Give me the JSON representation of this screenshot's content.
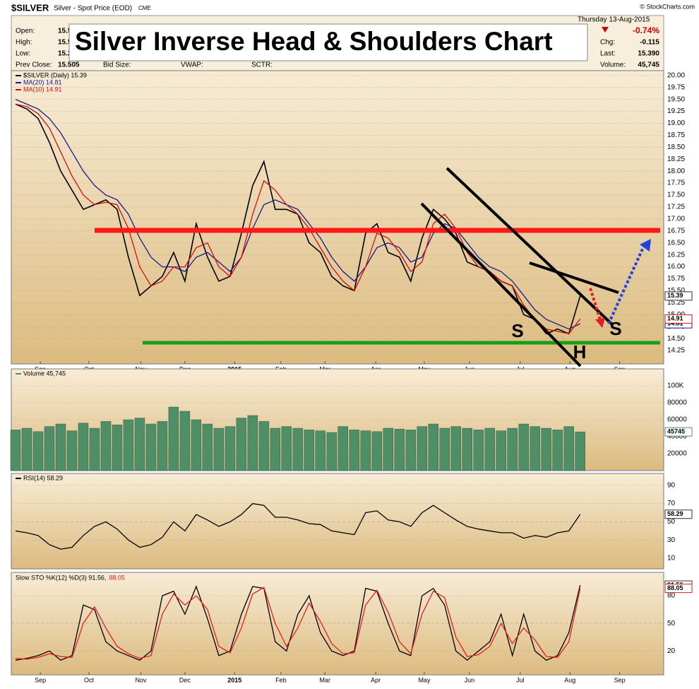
{
  "header": {
    "symbol": "$SILVER",
    "description": "Silver - Spot Price (EOD)",
    "exchange": "CME",
    "date": "Thursday 13-Aug-2015",
    "change_pct": "-0.74%",
    "fields": [
      {
        "label": "Open:",
        "value": "15.5"
      },
      {
        "label": "High:",
        "value": "15.5"
      },
      {
        "label": "Low:",
        "value": "15.2"
      },
      {
        "label": "Prev Close:",
        "value": "15.505"
      }
    ],
    "right_fields": [
      {
        "label": "Chg:",
        "value": "-0.115"
      },
      {
        "label": "Last:",
        "value": "15.390"
      },
      {
        "label": "Volume:",
        "value": "45,745"
      }
    ],
    "extra_fields": [
      "Bid Size:",
      "VWAP:",
      "SCTR:"
    ],
    "copyright": "© StockCharts.com"
  },
  "chart_data": [
    {
      "type": "line",
      "title": "Silver Inverse Head & Shoulders Chart",
      "annotations": [
        "S",
        "H",
        "S"
      ],
      "categories": [
        null,
        null,
        null,
        null,
        null,
        null,
        null,
        null,
        null,
        null,
        null,
        null,
        null,
        null,
        null,
        null,
        null,
        null,
        null,
        null,
        null,
        null,
        null,
        null,
        null,
        null,
        null,
        null,
        null,
        null,
        null,
        null,
        null,
        null,
        null,
        null,
        null,
        null,
        null,
        null,
        null,
        null,
        null,
        null,
        null,
        null,
        null,
        null,
        null,
        null,
        null
      ],
      "xlim": [
        -0.375,
        57.4
      ],
      "xticks": [
        {
          "value": 2.2,
          "label": "Sep"
        },
        {
          "value": 6.5,
          "label": "Oct"
        },
        {
          "value": 11.1,
          "label": "Nov"
        },
        {
          "value": 15,
          "label": "Dec"
        },
        {
          "value": 19.4,
          "label": "2015"
        },
        {
          "value": 23.5,
          "label": "Feb"
        },
        {
          "value": 27.4,
          "label": "Mar"
        },
        {
          "value": 31.9,
          "label": "Apr"
        },
        {
          "value": 36.2,
          "label": "May"
        },
        {
          "value": 40.2,
          "label": "Jun"
        },
        {
          "value": 44.7,
          "label": "Jul"
        },
        {
          "value": 49.1,
          "label": "Aug"
        },
        {
          "value": 53.5,
          "label": "Sep"
        }
      ],
      "ylim": [
        13.97,
        20.1
      ],
      "yticks": [
        {
          "value": 14.25,
          "label": "14.25"
        },
        {
          "value": 14.5,
          "label": "14.50"
        },
        {
          "value": 14.75,
          "label": "14.75"
        },
        {
          "value": 15,
          "label": "15.00"
        },
        {
          "value": 15.25,
          "label": "15.25"
        },
        {
          "value": 15.5,
          "label": "15.50"
        },
        {
          "value": 15.75,
          "label": "15.75"
        },
        {
          "value": 16,
          "label": "16.00"
        },
        {
          "value": 16.25,
          "label": "16.25"
        },
        {
          "value": 16.5,
          "label": "16.50"
        },
        {
          "value": 16.75,
          "label": "16.75"
        },
        {
          "value": 17,
          "label": "17.00"
        },
        {
          "value": 17.25,
          "label": "17.25"
        },
        {
          "value": 17.5,
          "label": "17.50"
        },
        {
          "value": 17.75,
          "label": "17.75"
        },
        {
          "value": 18,
          "label": "18.00"
        },
        {
          "value": 18.25,
          "label": "18.25"
        },
        {
          "value": 18.5,
          "label": "18.50"
        },
        {
          "value": 18.75,
          "label": "18.75"
        },
        {
          "value": 19,
          "label": "19.00"
        },
        {
          "value": 19.25,
          "label": "19.25"
        },
        {
          "value": 19.5,
          "label": "19.50"
        },
        {
          "value": 19.75,
          "label": "19.75"
        },
        {
          "value": 20,
          "label": "20.00"
        }
      ],
      "series": [
        {
          "name": "$SILVER (Daily) 15.39",
          "color": "#000000",
          "values": [
            19.4,
            19.3,
            19.1,
            18.6,
            18.0,
            17.6,
            17.2,
            17.3,
            17.4,
            17.2,
            16.2,
            15.4,
            15.6,
            15.8,
            16.3,
            15.7,
            16.9,
            16.2,
            15.7,
            15.8,
            16.7,
            17.7,
            18.2,
            17.2,
            17.2,
            17.1,
            16.5,
            16.3,
            15.8,
            15.6,
            15.5,
            16.7,
            16.9,
            16.3,
            16.2,
            15.7,
            16.6,
            17.2,
            17.0,
            16.7,
            16.1,
            16.0,
            15.9,
            15.7,
            15.6,
            15.0,
            14.9,
            14.6,
            14.7,
            14.6,
            15.39
          ]
        },
        {
          "name": "MA(20) 14.81",
          "color": "#1a1a8c",
          "values": [
            19.5,
            19.4,
            19.3,
            19.1,
            18.8,
            18.4,
            18.0,
            17.7,
            17.5,
            17.4,
            17.1,
            16.6,
            16.2,
            16.0,
            16.0,
            15.9,
            16.2,
            16.3,
            16.1,
            15.9,
            16.2,
            16.8,
            17.3,
            17.4,
            17.3,
            17.2,
            16.9,
            16.6,
            16.2,
            15.9,
            15.7,
            16.0,
            16.4,
            16.5,
            16.4,
            16.1,
            16.2,
            16.7,
            16.9,
            16.8,
            16.5,
            16.2,
            16.0,
            15.9,
            15.7,
            15.4,
            15.1,
            14.9,
            14.8,
            14.7,
            14.81
          ]
        },
        {
          "name": "MA(10) 14.91",
          "color": "#d01010",
          "values": [
            19.4,
            19.35,
            19.2,
            18.9,
            18.4,
            17.9,
            17.5,
            17.3,
            17.35,
            17.3,
            16.8,
            16.0,
            15.6,
            15.7,
            16.0,
            16.0,
            16.4,
            16.5,
            16.0,
            15.8,
            16.2,
            17.1,
            17.8,
            17.6,
            17.3,
            17.1,
            16.8,
            16.4,
            16.0,
            15.7,
            15.5,
            16.0,
            16.7,
            16.6,
            16.3,
            15.9,
            16.1,
            16.9,
            17.1,
            16.8,
            16.3,
            16.0,
            15.9,
            15.7,
            15.6,
            15.2,
            14.9,
            14.7,
            14.65,
            14.6,
            14.91
          ]
        }
      ]
    },
    {
      "type": "bar",
      "ylim": [
        0,
        120000
      ],
      "yticks": [
        20000,
        40000,
        60000,
        80000,
        {
          "value": 100000,
          "label": "100K"
        }
      ],
      "series": [
        {
          "name": "Volume 45,745",
          "color": "#4f8f68",
          "values": [
            48000,
            50000,
            46000,
            52000,
            55000,
            47000,
            56000,
            50000,
            58000,
            54000,
            60000,
            62000,
            55000,
            58000,
            75000,
            70000,
            60000,
            55000,
            50000,
            52000,
            62000,
            65000,
            58000,
            50000,
            52000,
            50000,
            48000,
            47000,
            45000,
            52000,
            48000,
            47000,
            46000,
            50000,
            49000,
            48000,
            52000,
            55000,
            50000,
            52000,
            50000,
            48000,
            50000,
            47000,
            50000,
            55000,
            52000,
            50000,
            48000,
            52000,
            45745
          ]
        }
      ]
    },
    {
      "type": "line",
      "ylim": [
        -1.6,
        103
      ],
      "yticks": [
        10,
        30,
        50,
        70,
        90
      ],
      "series": [
        {
          "name": "RSI(14) 58.29",
          "color": "#000000",
          "values": [
            40,
            38,
            35,
            25,
            20,
            22,
            35,
            45,
            50,
            42,
            30,
            22,
            25,
            33,
            50,
            40,
            58,
            52,
            45,
            50,
            58,
            70,
            68,
            55,
            55,
            52,
            48,
            47,
            40,
            38,
            36,
            60,
            62,
            52,
            50,
            45,
            60,
            68,
            60,
            52,
            45,
            42,
            40,
            38,
            38,
            32,
            35,
            33,
            38,
            40,
            58.29
          ]
        }
      ]
    },
    {
      "type": "line",
      "ylim": [
        -6,
        105.4
      ],
      "yticks": [
        20,
        50,
        80
      ],
      "series": [
        {
          "name": "Slow STO %K(12) %D(3) 91.56,",
          "color": "#000000",
          "values": [
            10,
            12,
            15,
            20,
            10,
            15,
            70,
            65,
            30,
            20,
            15,
            10,
            20,
            80,
            85,
            60,
            90,
            55,
            15,
            20,
            60,
            90,
            88,
            30,
            20,
            60,
            80,
            40,
            20,
            15,
            20,
            88,
            85,
            50,
            20,
            15,
            80,
            88,
            70,
            20,
            10,
            20,
            30,
            60,
            15,
            60,
            20,
            10,
            15,
            40,
            91.56
          ]
        },
        {
          "name": "88.05",
          "color": "#e02020",
          "values": [
            12,
            11,
            13,
            17,
            14,
            13,
            50,
            68,
            45,
            25,
            17,
            12,
            15,
            60,
            82,
            70,
            80,
            65,
            25,
            18,
            45,
            82,
            89,
            50,
            25,
            45,
            72,
            52,
            28,
            17,
            18,
            70,
            86,
            62,
            30,
            17,
            60,
            85,
            78,
            35,
            14,
            16,
            25,
            50,
            28,
            45,
            32,
            14,
            13,
            30,
            88.05
          ]
        }
      ]
    }
  ]
}
